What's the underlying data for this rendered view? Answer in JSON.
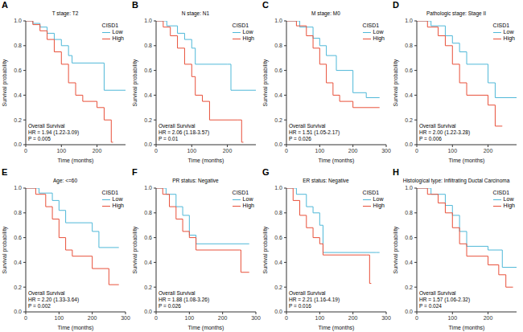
{
  "chart_data": [
    {
      "type": "line",
      "panel_label": "A",
      "title": "T stage: T2",
      "x_label": "Time (months)",
      "y_label": "Survival probability",
      "legend": "upper right",
      "legend_title": "CISD1",
      "line_style": "step",
      "annotations": [
        "Overall Survival",
        "HR = 1.94 (1.22-3.09)",
        "P = 0.005"
      ],
      "xlim": [
        0,
        280
      ],
      "xticks": [
        0,
        100,
        200
      ],
      "ylim": [
        0,
        1
      ],
      "yticks": [
        {
          "value": 0,
          "label": "0.0"
        },
        0.2,
        0.4,
        0.6,
        0.8,
        {
          "value": 1,
          "label": "1.0"
        }
      ],
      "series": [
        {
          "name": "Low",
          "color": "#4fb8d8",
          "x": [
            0,
            20,
            40,
            60,
            80,
            100,
            120,
            130,
            220,
            280
          ],
          "values": [
            1,
            0.98,
            0.95,
            0.9,
            0.85,
            0.8,
            0.72,
            0.66,
            0.44,
            0.44
          ]
        },
        {
          "name": "High",
          "color": "#e8503a",
          "x": [
            0,
            20,
            40,
            60,
            80,
            100,
            120,
            140,
            160,
            200,
            220,
            240,
            245
          ],
          "values": [
            1,
            0.97,
            0.92,
            0.85,
            0.75,
            0.65,
            0.5,
            0.4,
            0.35,
            0.3,
            0.2,
            0.02,
            0.02
          ]
        }
      ]
    },
    {
      "type": "line",
      "panel_label": "B",
      "title": "N stage: N1",
      "x_label": "Time (months)",
      "y_label": "Survival probability",
      "legend": "upper right",
      "legend_title": "CISD1",
      "line_style": "step",
      "annotations": [
        "Overall Survival",
        "HR = 2.06 (1.18-3.57)",
        "P = 0.01"
      ],
      "xlim": [
        0,
        280
      ],
      "xticks": [
        0,
        100,
        200
      ],
      "ylim": [
        0,
        1
      ],
      "yticks": [
        {
          "value": 0,
          "label": "0.0"
        },
        0.2,
        0.4,
        0.6,
        0.8,
        {
          "value": 1,
          "label": "1.0"
        }
      ],
      "series": [
        {
          "name": "Low",
          "color": "#4fb8d8",
          "x": [
            0,
            30,
            60,
            80,
            100,
            110,
            200,
            210,
            280
          ],
          "values": [
            1,
            0.96,
            0.9,
            0.85,
            0.78,
            0.65,
            0.65,
            0.44,
            0.44
          ]
        },
        {
          "name": "High",
          "color": "#e8503a",
          "x": [
            0,
            20,
            40,
            60,
            80,
            100,
            110,
            130,
            150,
            230,
            240,
            245
          ],
          "values": [
            1,
            0.95,
            0.88,
            0.78,
            0.65,
            0.55,
            0.4,
            0.35,
            0.2,
            0.2,
            0.02,
            0.02
          ]
        }
      ]
    },
    {
      "type": "line",
      "panel_label": "C",
      "title": "M stage: M0",
      "x_label": "Time (months)",
      "y_label": "Survival probability",
      "legend": "upper right",
      "legend_title": "CISD1",
      "line_style": "step",
      "annotations": [
        "Overall Survival",
        "HR = 1.51 (1.05-2.17)",
        "P = 0.026"
      ],
      "xlim": [
        0,
        300
      ],
      "xticks": [
        0,
        100,
        200,
        300
      ],
      "ylim": [
        0,
        1
      ],
      "yticks": [
        {
          "value": 0,
          "label": "0.0"
        },
        0.2,
        0.4,
        0.6,
        0.8,
        {
          "value": 1,
          "label": "1.0"
        }
      ],
      "series": [
        {
          "name": "Low",
          "color": "#4fb8d8",
          "x": [
            0,
            40,
            80,
            100,
            120,
            150,
            200,
            240,
            280
          ],
          "values": [
            1,
            0.95,
            0.86,
            0.8,
            0.72,
            0.6,
            0.42,
            0.38,
            0.38
          ]
        },
        {
          "name": "High",
          "color": "#e8503a",
          "x": [
            0,
            30,
            60,
            80,
            100,
            120,
            140,
            160,
            200,
            280
          ],
          "values": [
            1,
            0.96,
            0.88,
            0.78,
            0.65,
            0.5,
            0.4,
            0.35,
            0.3,
            0.3
          ]
        }
      ]
    },
    {
      "type": "line",
      "panel_label": "D",
      "title": "Pathologic stage: Stage II",
      "x_label": "Time (months)",
      "y_label": "Survival probability",
      "legend": "upper right",
      "legend_title": "CISD1",
      "line_style": "step",
      "annotations": [
        "Overall Survival",
        "HR = 2.00 (1.22-3.28)",
        "P = 0.006"
      ],
      "xlim": [
        0,
        280
      ],
      "xticks": [
        0,
        100,
        200
      ],
      "ylim": [
        0,
        1
      ],
      "yticks": [
        {
          "value": 0,
          "label": "0.0"
        },
        0.2,
        0.4,
        0.6,
        0.8,
        {
          "value": 1,
          "label": "1.0"
        }
      ],
      "series": [
        {
          "name": "Low",
          "color": "#4fb8d8",
          "x": [
            0,
            40,
            80,
            100,
            120,
            140,
            200,
            220,
            280
          ],
          "values": [
            1,
            0.96,
            0.88,
            0.82,
            0.75,
            0.65,
            0.5,
            0.38,
            0.38
          ]
        },
        {
          "name": "High",
          "color": "#e8503a",
          "x": [
            0,
            30,
            60,
            80,
            100,
            120,
            140,
            200,
            220,
            240
          ],
          "values": [
            1,
            0.95,
            0.88,
            0.8,
            0.65,
            0.5,
            0.4,
            0.32,
            0.15,
            0.15
          ]
        }
      ]
    },
    {
      "type": "line",
      "panel_label": "E",
      "title": "Age: <=60",
      "x_label": "Time (months)",
      "y_label": "Survival probability",
      "legend": "upper right",
      "legend_title": "CISD1",
      "line_style": "step",
      "annotations": [
        "Overall Survival",
        "HR = 2.20 (1.33-3.64)",
        "P = 0.002"
      ],
      "xlim": [
        0,
        300
      ],
      "xticks": [
        0,
        100,
        200,
        300
      ],
      "ylim": [
        0,
        1
      ],
      "yticks": [
        {
          "value": 0,
          "label": "0.0"
        },
        0.2,
        0.4,
        0.6,
        0.8,
        {
          "value": 1,
          "label": "1.0"
        }
      ],
      "series": [
        {
          "name": "Low",
          "color": "#4fb8d8",
          "x": [
            0,
            40,
            80,
            100,
            120,
            200,
            220,
            280
          ],
          "values": [
            1,
            0.96,
            0.9,
            0.82,
            0.72,
            0.65,
            0.52,
            0.52
          ]
        },
        {
          "name": "High",
          "color": "#e8503a",
          "x": [
            0,
            30,
            60,
            80,
            100,
            120,
            140,
            200,
            250,
            280
          ],
          "values": [
            1,
            0.95,
            0.85,
            0.75,
            0.6,
            0.5,
            0.45,
            0.35,
            0.22,
            0.22
          ]
        }
      ]
    },
    {
      "type": "line",
      "panel_label": "F",
      "title": "PR status: Negative",
      "x_label": "Time (months)",
      "y_label": "Survival probability",
      "legend": "upper right",
      "legend_title": "CISD1",
      "line_style": "step",
      "annotations": [
        "Overall Survival",
        "HR = 1.88 (1.08-3.26)",
        "P = 0.026"
      ],
      "xlim": [
        0,
        300
      ],
      "xticks": [
        0,
        100,
        200,
        300
      ],
      "ylim": [
        0,
        1
      ],
      "yticks": [
        {
          "value": 0,
          "label": "0.0"
        },
        0.2,
        0.4,
        0.6,
        0.8,
        {
          "value": 1,
          "label": "1.0"
        }
      ],
      "series": [
        {
          "name": "Low",
          "color": "#4fb8d8",
          "x": [
            0,
            30,
            60,
            80,
            100,
            120,
            280
          ],
          "values": [
            1,
            0.95,
            0.85,
            0.78,
            0.62,
            0.55,
            0.55
          ]
        },
        {
          "name": "High",
          "color": "#e8503a",
          "x": [
            0,
            20,
            40,
            60,
            80,
            100,
            120,
            250,
            255,
            280
          ],
          "values": [
            1,
            0.95,
            0.85,
            0.75,
            0.65,
            0.6,
            0.5,
            0.5,
            0.32,
            0.32
          ]
        }
      ]
    },
    {
      "type": "line",
      "panel_label": "G",
      "title": "ER status: Negative",
      "x_label": "Time (months)",
      "y_label": "Survival probability",
      "legend": "upper right",
      "legend_title": "CISD1",
      "line_style": "step",
      "annotations": [
        "Overall Survival",
        "HR = 2.21 (1.16-4.19)",
        "P = 0.016"
      ],
      "xlim": [
        0,
        300
      ],
      "xticks": [
        0,
        100,
        200,
        300
      ],
      "ylim": [
        0,
        1
      ],
      "yticks": [
        {
          "value": 0,
          "label": "0.0"
        },
        0.2,
        0.4,
        0.6,
        0.8,
        {
          "value": 1,
          "label": "1.0"
        }
      ],
      "series": [
        {
          "name": "Low",
          "color": "#4fb8d8",
          "x": [
            0,
            30,
            60,
            80,
            100,
            110,
            270,
            280
          ],
          "values": [
            1,
            0.95,
            0.85,
            0.8,
            0.7,
            0.48,
            0.48,
            0.48
          ]
        },
        {
          "name": "High",
          "color": "#e8503a",
          "x": [
            0,
            20,
            40,
            60,
            80,
            100,
            110,
            240,
            250,
            255
          ],
          "values": [
            1,
            0.9,
            0.78,
            0.68,
            0.6,
            0.55,
            0.46,
            0.46,
            0.23,
            0.23
          ]
        }
      ]
    },
    {
      "type": "line",
      "panel_label": "H",
      "title": "Histological type: Infiltrating Ductal Carcinoma",
      "x_label": "Time (months)",
      "y_label": "Survival probability",
      "legend": "upper right",
      "legend_title": "CISD1",
      "line_style": "step",
      "annotations": [
        "Overall Survival",
        "HR = 1.57 (1.06-2.32)",
        "P = 0.024"
      ],
      "xlim": [
        0,
        280
      ],
      "xticks": [
        0,
        100,
        200
      ],
      "ylim": [
        0,
        1
      ],
      "yticks": [
        {
          "value": 0,
          "label": "0.0"
        },
        0.2,
        0.4,
        0.6,
        0.8,
        {
          "value": 1,
          "label": "1.0"
        }
      ],
      "series": [
        {
          "name": "Low",
          "color": "#4fb8d8",
          "x": [
            0,
            40,
            80,
            100,
            120,
            140,
            200,
            240,
            280
          ],
          "values": [
            1,
            0.95,
            0.86,
            0.78,
            0.65,
            0.53,
            0.5,
            0.36,
            0.36
          ]
        },
        {
          "name": "High",
          "color": "#e8503a",
          "x": [
            0,
            30,
            60,
            80,
            100,
            120,
            140,
            200,
            230,
            250,
            270
          ],
          "values": [
            1,
            0.95,
            0.88,
            0.8,
            0.68,
            0.55,
            0.45,
            0.38,
            0.3,
            0.2,
            0.2
          ]
        }
      ]
    }
  ]
}
